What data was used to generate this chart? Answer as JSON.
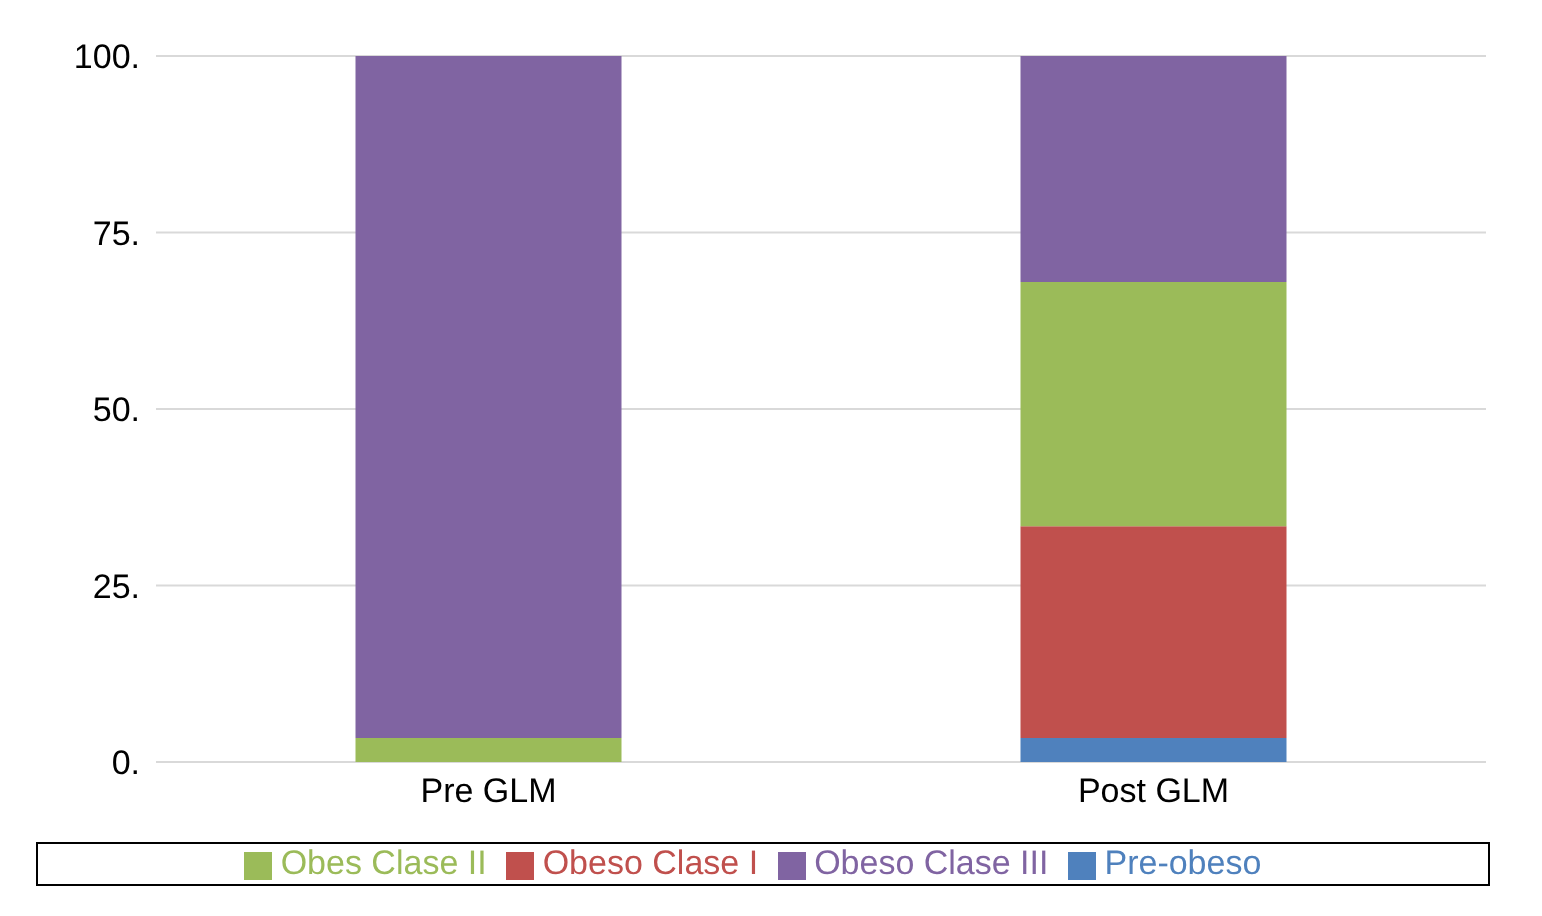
{
  "chart_data": {
    "type": "bar",
    "stacked": true,
    "categories": [
      "Pre GLM",
      "Post GLM"
    ],
    "series": [
      {
        "name": "Pre-obeso",
        "color": "#4f81bd",
        "values": [
          0,
          3.4
        ]
      },
      {
        "name": "Obeso Clase I",
        "color": "#c0504d",
        "values": [
          0,
          30
        ]
      },
      {
        "name": "Obes Clase II",
        "color": "#9bbb59",
        "values": [
          3.4,
          34.6
        ]
      },
      {
        "name": "Obeso Clase III",
        "color": "#8064a2",
        "values": [
          96.6,
          32
        ]
      }
    ],
    "ylim": [
      0,
      100
    ],
    "yticks": [
      {
        "value": 0,
        "label": "0."
      },
      {
        "value": 25,
        "label": "25."
      },
      {
        "value": 50,
        "label": "50."
      },
      {
        "value": 75,
        "label": "75."
      },
      {
        "value": 100,
        "label": "100."
      }
    ],
    "grid": "y",
    "legend": "bottom"
  }
}
